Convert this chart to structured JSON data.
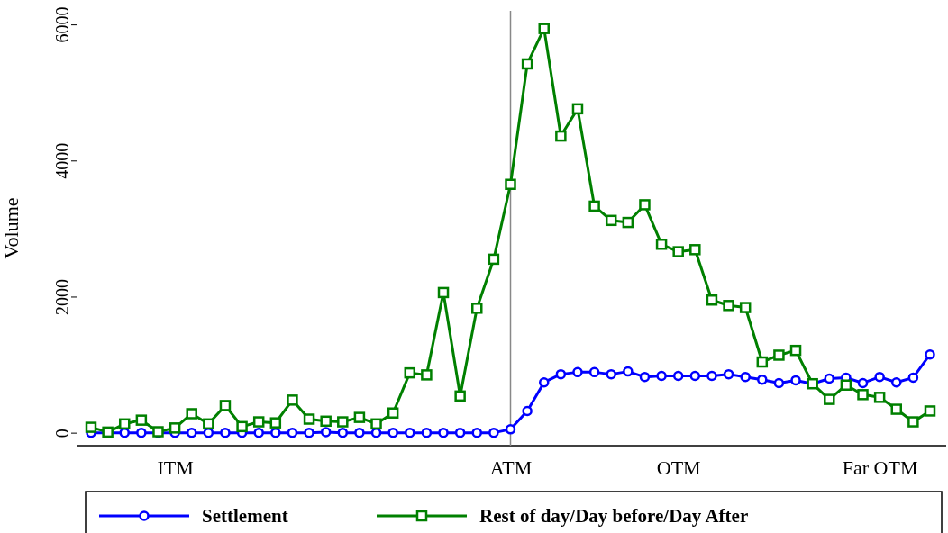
{
  "chart_data": {
    "type": "line",
    "ylabel": "Volume",
    "categories": [
      null,
      null,
      null,
      null,
      null,
      "ITM",
      null,
      null,
      null,
      null,
      null,
      null,
      null,
      null,
      null,
      null,
      null,
      null,
      null,
      null,
      null,
      null,
      null,
      null,
      null,
      "ATM",
      null,
      null,
      null,
      null,
      null,
      null,
      null,
      null,
      null,
      "OTM",
      null,
      null,
      null,
      null,
      null,
      null,
      null,
      null,
      null,
      null,
      null,
      "Far OTM",
      null,
      null,
      null
    ],
    "series": [
      {
        "name": "Settlement",
        "color": "#0000ff",
        "marker": "circle",
        "values": [
          0,
          0,
          0,
          0,
          0,
          0,
          0,
          0,
          0,
          0,
          0,
          0,
          0,
          0,
          10,
          0,
          0,
          0,
          0,
          0,
          0,
          0,
          0,
          0,
          0,
          50,
          320,
          740,
          860,
          890,
          890,
          860,
          900,
          820,
          835,
          835,
          835,
          835,
          860,
          820,
          780,
          730,
          770,
          720,
          795,
          810,
          730,
          820,
          740,
          810,
          1150
        ]
      },
      {
        "name": "Rest of day/Day before/Day After",
        "color": "#008000",
        "marker": "square",
        "values": [
          80,
          10,
          130,
          185,
          15,
          70,
          280,
          130,
          400,
          90,
          160,
          145,
          480,
          200,
          170,
          160,
          225,
          130,
          290,
          880,
          850,
          2060,
          540,
          1830,
          2550,
          3650,
          5420,
          5940,
          4360,
          4760,
          3330,
          3120,
          3090,
          3350,
          2770,
          2660,
          2690,
          1950,
          1870,
          1840,
          1040,
          1140,
          1210,
          720,
          490,
          700,
          560,
          520,
          345,
          160,
          320
        ]
      }
    ],
    "ylim": [
      -190,
      6200
    ],
    "yticks": [
      0,
      2000,
      4000,
      6000
    ],
    "ref_lines": [
      {
        "axis": "x",
        "value": "ATM",
        "color": "#888888"
      }
    ],
    "grid": false,
    "legend": "bottom"
  }
}
